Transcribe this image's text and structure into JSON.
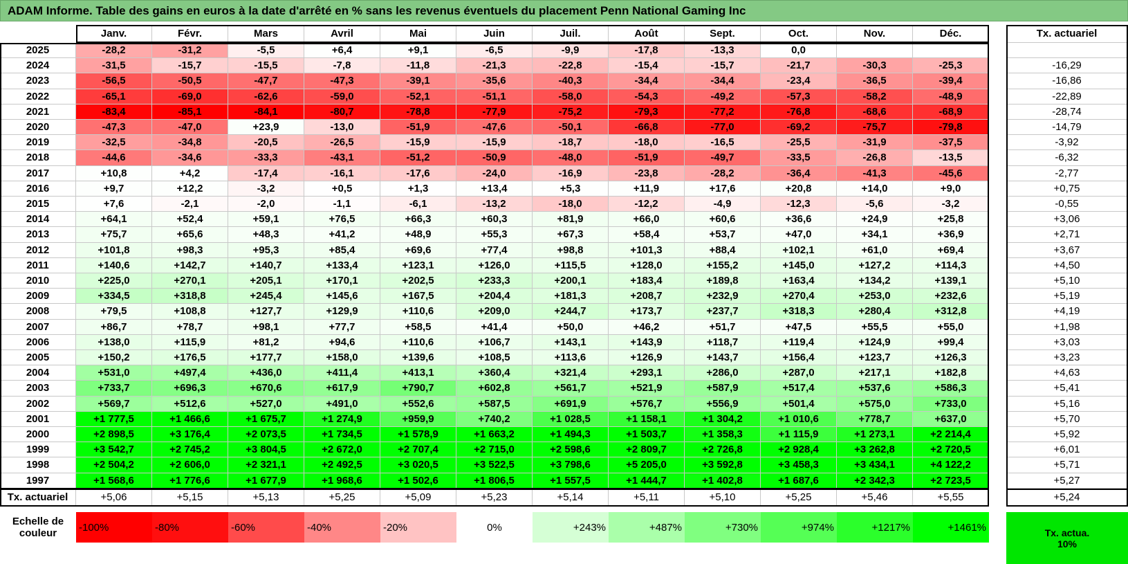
{
  "title": "ADAM Informe. Table des gains en euros à la date d'arrêté en % sans les revenus éventuels du placement Penn National Gaming Inc",
  "table": {
    "headers": {
      "months": [
        "Janv.",
        "Févr.",
        "Mars",
        "Avril",
        "Mai",
        "Juin",
        "Juil.",
        "Août",
        "Sept.",
        "Oct.",
        "Nov.",
        "Déc."
      ],
      "rate": "Tx. actuariel"
    },
    "rows": [
      {
        "year": "2025",
        "values": [
          "-28,2",
          "-31,2",
          "-5,5",
          "+6,4",
          "+9,1",
          "-6,5",
          "-9,9",
          "-17,8",
          "-13,3",
          "0,0",
          null,
          null
        ],
        "rate": null
      },
      {
        "year": "2024",
        "values": [
          "-31,5",
          "-15,7",
          "-15,5",
          "-7,8",
          "-11,8",
          "-21,3",
          "-22,8",
          "-15,4",
          "-15,7",
          "-21,7",
          "-30,3",
          "-25,3"
        ],
        "rate": "-16,29"
      },
      {
        "year": "2023",
        "values": [
          "-56,5",
          "-50,5",
          "-47,7",
          "-47,3",
          "-39,1",
          "-35,6",
          "-40,3",
          "-34,4",
          "-34,4",
          "-23,4",
          "-36,5",
          "-39,4"
        ],
        "rate": "-16,86"
      },
      {
        "year": "2022",
        "values": [
          "-65,1",
          "-69,0",
          "-62,6",
          "-59,0",
          "-52,1",
          "-51,1",
          "-58,0",
          "-54,3",
          "-49,2",
          "-57,3",
          "-58,2",
          "-48,9"
        ],
        "rate": "-22,89"
      },
      {
        "year": "2021",
        "values": [
          "-83,4",
          "-85,1",
          "-84,1",
          "-80,7",
          "-78,8",
          "-77,9",
          "-75,2",
          "-79,3",
          "-77,2",
          "-76,8",
          "-68,6",
          "-68,9"
        ],
        "rate": "-28,74"
      },
      {
        "year": "2020",
        "values": [
          "-47,3",
          "-47,0",
          "+23,9",
          "-13,0",
          "-51,9",
          "-47,6",
          "-50,1",
          "-66,8",
          "-77,0",
          "-69,2",
          "-75,7",
          "-79,8"
        ],
        "rate": "-14,79"
      },
      {
        "year": "2019",
        "values": [
          "-32,5",
          "-34,8",
          "-20,5",
          "-26,5",
          "-15,9",
          "-15,9",
          "-18,7",
          "-18,0",
          "-16,5",
          "-25,5",
          "-31,9",
          "-37,5"
        ],
        "rate": "-3,92"
      },
      {
        "year": "2018",
        "values": [
          "-44,6",
          "-34,6",
          "-33,3",
          "-43,1",
          "-51,2",
          "-50,9",
          "-48,0",
          "-51,9",
          "-49,7",
          "-33,5",
          "-26,8",
          "-13,5"
        ],
        "rate": "-6,32"
      },
      {
        "year": "2017",
        "values": [
          "+10,8",
          "+4,2",
          "-17,4",
          "-16,1",
          "-17,6",
          "-24,0",
          "-16,9",
          "-23,8",
          "-28,2",
          "-36,4",
          "-41,3",
          "-45,6"
        ],
        "rate": "-2,77"
      },
      {
        "year": "2016",
        "values": [
          "+9,7",
          "+12,2",
          "-3,2",
          "+0,5",
          "+1,3",
          "+13,4",
          "+5,3",
          "+11,9",
          "+17,6",
          "+20,8",
          "+14,0",
          "+9,0"
        ],
        "rate": "+0,75"
      },
      {
        "year": "2015",
        "values": [
          "+7,6",
          "-2,1",
          "-2,0",
          "-1,1",
          "-6,1",
          "-13,2",
          "-18,0",
          "-12,2",
          "-4,9",
          "-12,3",
          "-5,6",
          "-3,2"
        ],
        "rate": "-0,55"
      },
      {
        "year": "2014",
        "values": [
          "+64,1",
          "+52,4",
          "+59,1",
          "+76,5",
          "+66,3",
          "+60,3",
          "+81,9",
          "+66,0",
          "+60,6",
          "+36,6",
          "+24,9",
          "+25,8"
        ],
        "rate": "+3,06"
      },
      {
        "year": "2013",
        "values": [
          "+75,7",
          "+65,6",
          "+48,3",
          "+41,2",
          "+48,9",
          "+55,3",
          "+67,3",
          "+58,4",
          "+53,7",
          "+47,0",
          "+34,1",
          "+36,9"
        ],
        "rate": "+2,71"
      },
      {
        "year": "2012",
        "values": [
          "+101,8",
          "+98,3",
          "+95,3",
          "+85,4",
          "+69,6",
          "+77,4",
          "+98,8",
          "+101,3",
          "+88,4",
          "+102,1",
          "+61,0",
          "+69,4"
        ],
        "rate": "+3,67"
      },
      {
        "year": "2011",
        "values": [
          "+140,6",
          "+142,7",
          "+140,7",
          "+133,4",
          "+123,1",
          "+126,0",
          "+115,5",
          "+128,0",
          "+155,2",
          "+145,0",
          "+127,2",
          "+114,3"
        ],
        "rate": "+4,50"
      },
      {
        "year": "2010",
        "values": [
          "+225,0",
          "+270,1",
          "+205,1",
          "+170,1",
          "+202,5",
          "+233,3",
          "+200,1",
          "+183,4",
          "+189,8",
          "+163,4",
          "+134,2",
          "+139,1"
        ],
        "rate": "+5,10"
      },
      {
        "year": "2009",
        "values": [
          "+334,5",
          "+318,8",
          "+245,4",
          "+145,6",
          "+167,5",
          "+204,4",
          "+181,3",
          "+208,7",
          "+232,9",
          "+270,4",
          "+253,0",
          "+232,6"
        ],
        "rate": "+5,19"
      },
      {
        "year": "2008",
        "values": [
          "+79,5",
          "+108,8",
          "+127,7",
          "+129,9",
          "+110,6",
          "+209,0",
          "+244,7",
          "+173,7",
          "+237,7",
          "+318,3",
          "+280,4",
          "+312,8"
        ],
        "rate": "+4,19"
      },
      {
        "year": "2007",
        "values": [
          "+86,7",
          "+78,7",
          "+98,1",
          "+77,7",
          "+58,5",
          "+41,4",
          "+50,0",
          "+46,2",
          "+51,7",
          "+47,5",
          "+55,5",
          "+55,0"
        ],
        "rate": "+1,98"
      },
      {
        "year": "2006",
        "values": [
          "+138,0",
          "+115,9",
          "+81,2",
          "+94,6",
          "+110,6",
          "+106,7",
          "+143,1",
          "+143,9",
          "+118,7",
          "+119,4",
          "+124,9",
          "+99,4"
        ],
        "rate": "+3,03"
      },
      {
        "year": "2005",
        "values": [
          "+150,2",
          "+176,5",
          "+177,7",
          "+158,0",
          "+139,6",
          "+108,5",
          "+113,6",
          "+126,9",
          "+143,7",
          "+156,4",
          "+123,7",
          "+126,3"
        ],
        "rate": "+3,23"
      },
      {
        "year": "2004",
        "values": [
          "+531,0",
          "+497,4",
          "+436,0",
          "+411,4",
          "+413,1",
          "+360,4",
          "+321,4",
          "+293,1",
          "+286,0",
          "+287,0",
          "+217,1",
          "+182,8"
        ],
        "rate": "+4,63"
      },
      {
        "year": "2003",
        "values": [
          "+733,7",
          "+696,3",
          "+670,6",
          "+617,9",
          "+790,7",
          "+602,8",
          "+561,7",
          "+521,9",
          "+587,9",
          "+517,4",
          "+537,6",
          "+586,3"
        ],
        "rate": "+5,41"
      },
      {
        "year": "2002",
        "values": [
          "+569,7",
          "+512,6",
          "+527,0",
          "+491,0",
          "+552,6",
          "+587,5",
          "+691,9",
          "+576,7",
          "+556,9",
          "+501,4",
          "+575,0",
          "+733,0"
        ],
        "rate": "+5,16"
      },
      {
        "year": "2001",
        "values": [
          "+1 777,5",
          "+1 466,6",
          "+1 675,7",
          "+1 274,9",
          "+959,9",
          "+740,2",
          "+1 028,5",
          "+1 158,1",
          "+1 304,2",
          "+1 010,6",
          "+778,7",
          "+637,0"
        ],
        "rate": "+5,70"
      },
      {
        "year": "2000",
        "values": [
          "+2 898,5",
          "+3 176,4",
          "+2 073,5",
          "+1 734,5",
          "+1 578,9",
          "+1 663,2",
          "+1 494,3",
          "+1 503,7",
          "+1 358,3",
          "+1 115,9",
          "+1 273,1",
          "+2 214,4"
        ],
        "rate": "+5,92"
      },
      {
        "year": "1999",
        "values": [
          "+3 542,7",
          "+2 745,2",
          "+3 804,5",
          "+2 672,0",
          "+2 707,4",
          "+2 715,0",
          "+2 598,6",
          "+2 809,7",
          "+2 726,8",
          "+2 928,4",
          "+3 262,8",
          "+2 720,5"
        ],
        "rate": "+6,01"
      },
      {
        "year": "1998",
        "values": [
          "+2 504,2",
          "+2 606,0",
          "+2 321,1",
          "+2 492,5",
          "+3 020,5",
          "+3 522,5",
          "+3 798,6",
          "+5 205,0",
          "+3 592,8",
          "+3 458,3",
          "+3 434,1",
          "+4 122,2"
        ],
        "rate": "+5,71"
      },
      {
        "year": "1997",
        "values": [
          "+1 568,6",
          "+1 776,6",
          "+1 677,9",
          "+1 968,6",
          "+1 502,6",
          "+1 806,5",
          "+1 557,5",
          "+1 444,7",
          "+1 402,8",
          "+1 687,6",
          "+2 342,3",
          "+2 723,5"
        ],
        "rate": "+5,27"
      }
    ],
    "footer": {
      "label": "Tx. actuariel",
      "values": [
        "+5,06",
        "+5,15",
        "+5,13",
        "+5,25",
        "+5,09",
        "+5,23",
        "+5,14",
        "+5,11",
        "+5,10",
        "+5,25",
        "+5,46",
        "+5,55"
      ],
      "rate": "+5,24"
    }
  },
  "legend": {
    "label": "Echelle de couleur",
    "steps": [
      "-100%",
      "-80%",
      "-60%",
      "-40%",
      "-20%",
      "0%",
      "+243%",
      "+487%",
      "+730%",
      "+974%",
      "+1217%",
      "+1461%"
    ],
    "rate": "Tx. actua. 10%"
  }
}
